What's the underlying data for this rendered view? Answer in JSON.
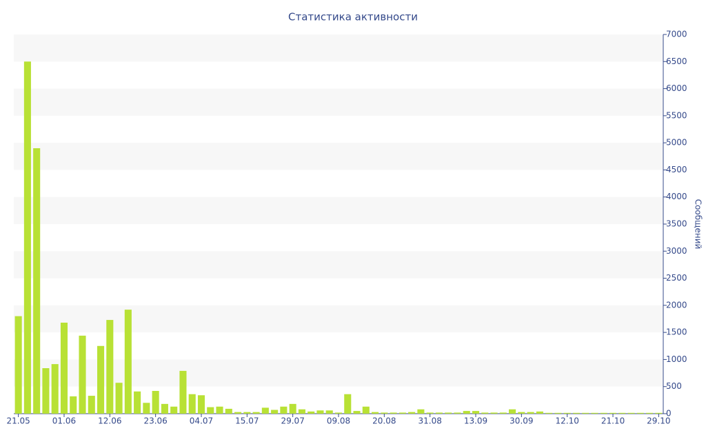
{
  "chart_data": {
    "type": "bar",
    "title": "Статистика активности",
    "y_axis_label": "Сообщений",
    "y_axis_side": "right",
    "categories": [
      "21.05",
      null,
      null,
      null,
      null,
      "01.06",
      null,
      null,
      null,
      null,
      "12.06",
      null,
      null,
      null,
      null,
      "23.06",
      null,
      null,
      null,
      null,
      "04.07",
      null,
      null,
      null,
      null,
      "15.07",
      null,
      null,
      null,
      null,
      "29.07",
      null,
      null,
      null,
      null,
      "09.08",
      null,
      null,
      null,
      null,
      "20.08",
      null,
      null,
      null,
      null,
      "31.08",
      null,
      null,
      null,
      null,
      "13.09",
      null,
      null,
      null,
      null,
      "30.09",
      null,
      null,
      null,
      null,
      "12.10",
      null,
      null,
      null,
      null,
      "21.10",
      null,
      null,
      null,
      null,
      "29.10"
    ],
    "values": [
      1800,
      6500,
      4900,
      840,
      915,
      1680,
      320,
      1440,
      330,
      1250,
      1730,
      570,
      1920,
      410,
      200,
      420,
      180,
      130,
      790,
      360,
      340,
      120,
      130,
      90,
      30,
      30,
      30,
      110,
      70,
      130,
      180,
      80,
      40,
      60,
      60,
      20,
      360,
      50,
      130,
      30,
      20,
      20,
      20,
      30,
      80,
      20,
      20,
      20,
      20,
      50,
      50,
      20,
      20,
      20,
      80,
      30,
      30,
      40,
      15,
      15,
      15,
      15,
      15,
      15,
      15,
      15,
      15,
      15,
      15,
      15,
      15
    ],
    "color": "#b8e135",
    "ylim": [
      0,
      7000
    ],
    "yticks": [
      0,
      500,
      1000,
      1500,
      2000,
      2500,
      3000,
      3500,
      4000,
      4500,
      5000,
      5500,
      6000,
      6500,
      7000
    ],
    "grid": "alternating-bands"
  }
}
